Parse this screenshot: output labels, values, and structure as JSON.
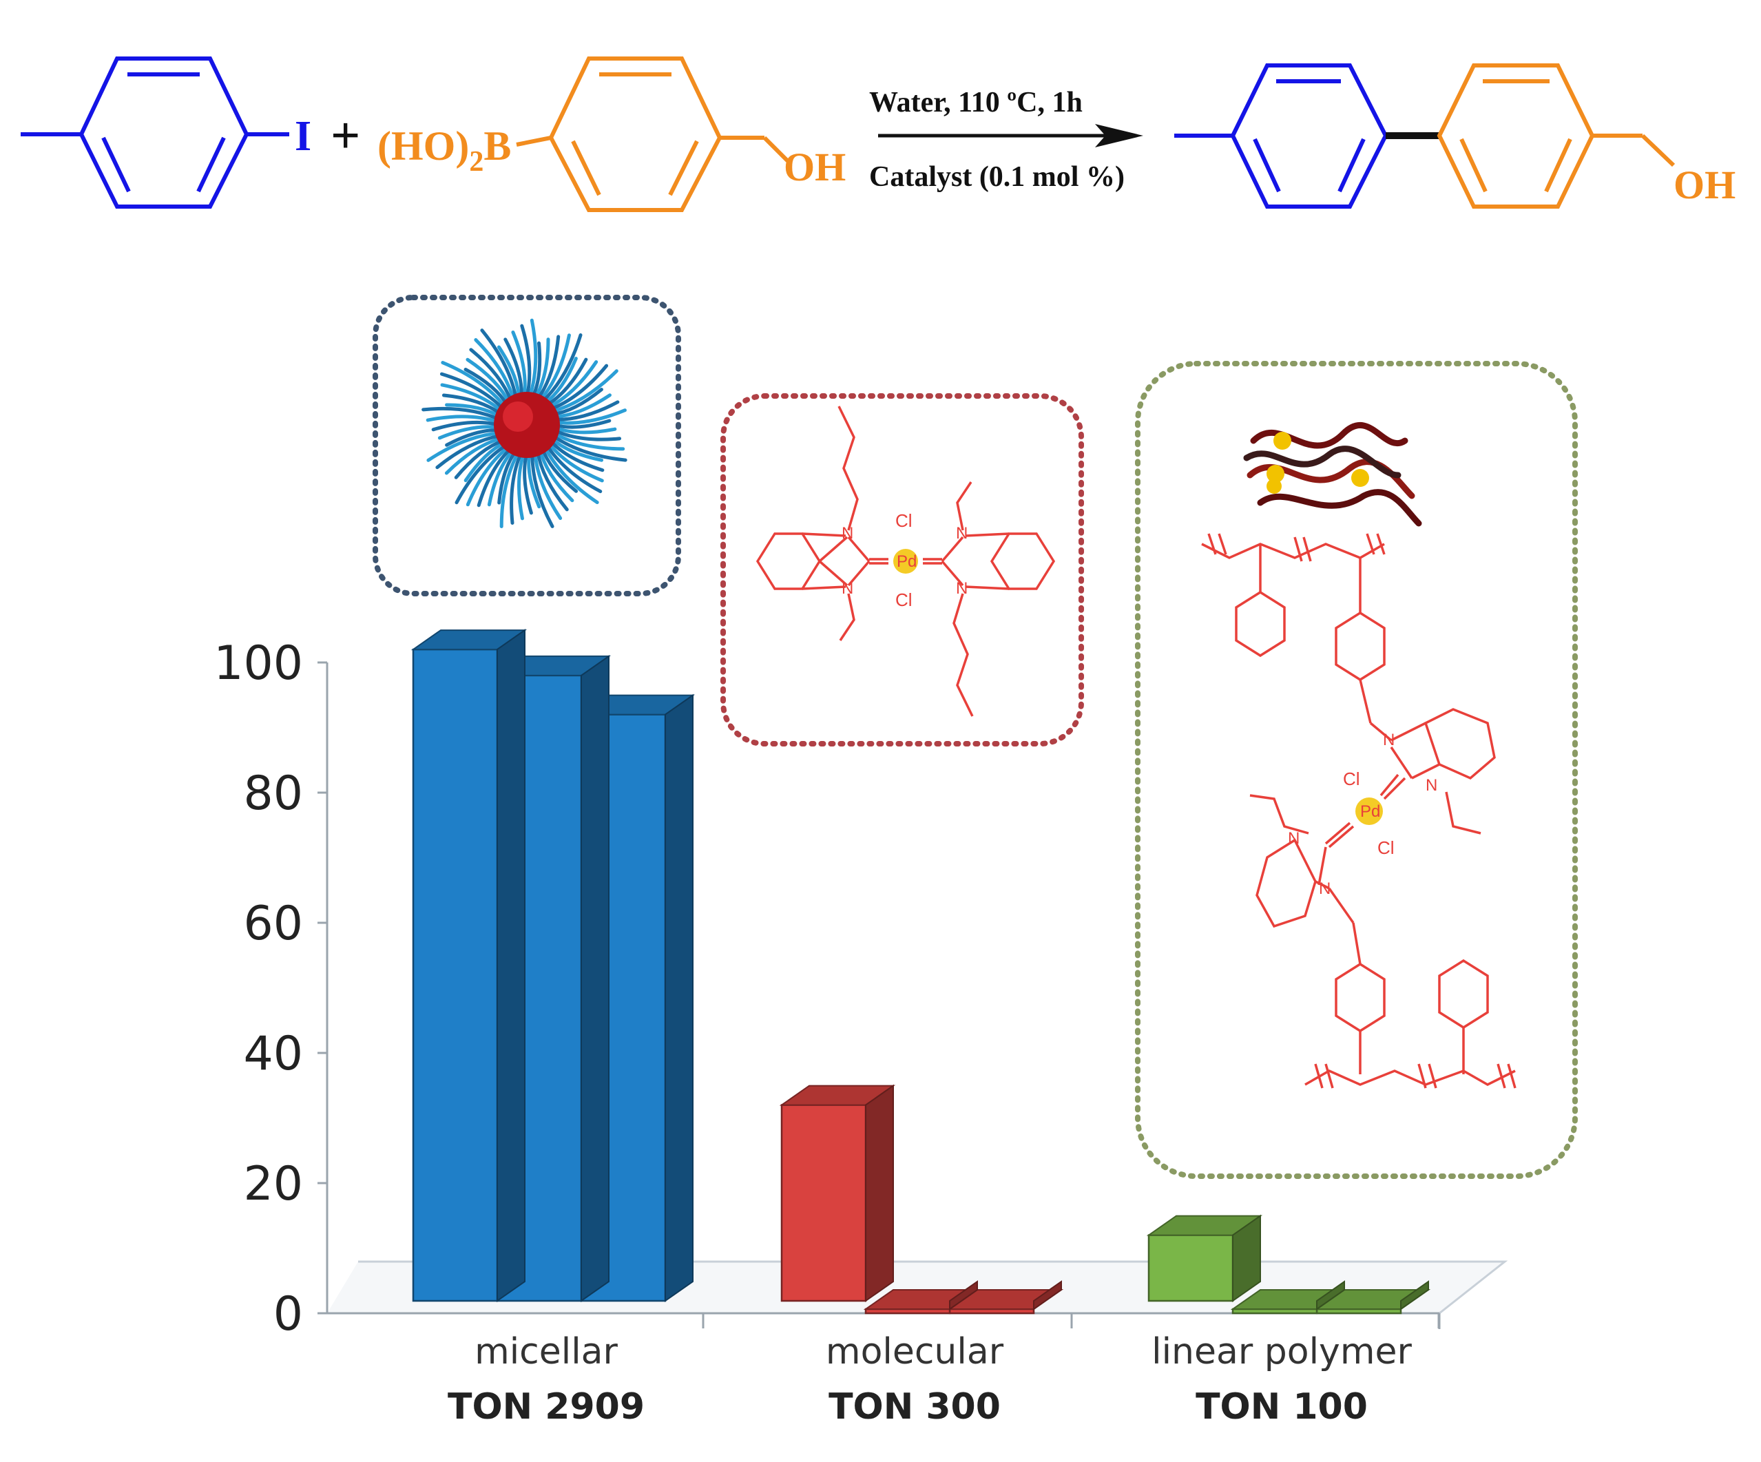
{
  "reaction": {
    "iodo_substituent": "I",
    "plus": "+",
    "boronic_group_main": "(HO)",
    "boronic_group_sub": "2",
    "boronic_group_end": "B",
    "hydroxyl_reactant": "OH",
    "hydroxyl_product": "OH",
    "condition_top": "Water, 110 ºC, 1h",
    "condition_bottom": "Catalyst (0.1 mol %)"
  },
  "colors": {
    "blue_ring": "#1414e6",
    "orange_ring": "#f28c1e",
    "micellar_bar": "#1f7fc8",
    "molecular_bar": "#d9423f",
    "polymer_bar": "#7ab648",
    "structure_red": "#e8403a",
    "pd_atom": "#f2c200",
    "box_blue": "#3d5470",
    "box_red": "#b04045",
    "box_green": "#8a9a63"
  },
  "structures": {
    "chloride": "Cl",
    "palladium": "Pd",
    "nitrogen": "N"
  },
  "chart_data": {
    "type": "bar",
    "categories": [
      "micellar",
      "molecular",
      "linear polymer"
    ],
    "series": [
      {
        "values": [
          102,
          32,
          12
        ]
      },
      {
        "values": [
          98,
          0,
          0
        ]
      },
      {
        "values": [
          92,
          0,
          0
        ]
      }
    ],
    "ton_labels": [
      "TON 2909",
      "TON 300",
      "TON 100"
    ],
    "ylim": [
      0,
      100
    ],
    "yticks": [
      "0",
      "20",
      "40",
      "60",
      "80",
      "100"
    ],
    "grid": false,
    "three_d": true,
    "xlabel": "",
    "ylabel": ""
  }
}
